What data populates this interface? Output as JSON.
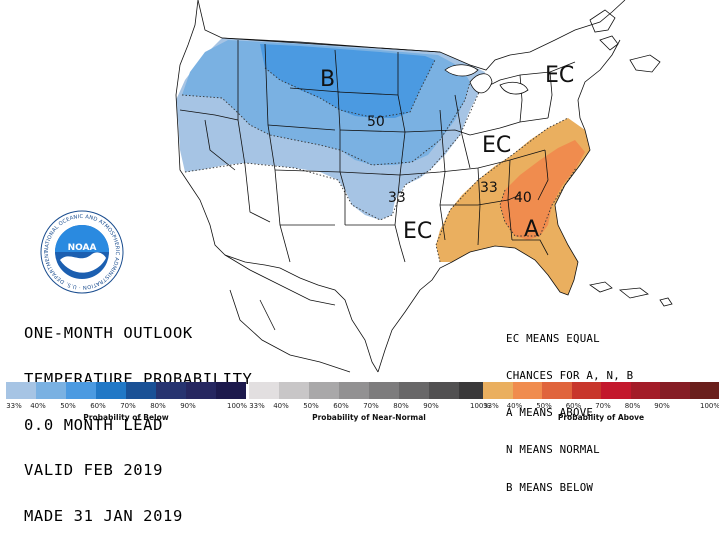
{
  "title_lines": [
    "ONE-MONTH OUTLOOK",
    "TEMPERATURE PROBABILITY",
    "0.0 MONTH LEAD",
    "VALID FEB 2019",
    "MADE 31 JAN 2019"
  ],
  "legend_lines": [
    "EC MEANS EQUAL",
    "CHANCES FOR A, N, B",
    "A MEANS ABOVE",
    "N MEANS NORMAL",
    "B MEANS BELOW"
  ],
  "map_labels": {
    "below": "B",
    "above": "A",
    "ec_northeast": "EC",
    "ec_central": "EC",
    "ec_south": "EC",
    "contour_50": "50",
    "contour_33_west": "33",
    "contour_33_east": "33",
    "contour_40": "40"
  },
  "noaa": {
    "logo_text": "NOAA",
    "ring_text": "NATIONAL OCEANIC AND ATMOSPHERIC ADMINISTRATION · U.S. DEPARTMENT OF COMMERCE"
  },
  "scales": [
    {
      "name": "Probability of Below",
      "colors": [
        "#a6c4e4",
        "#7ab1e2",
        "#4b9ae1",
        "#2178c6",
        "#1a5196",
        "#273470",
        "#262760",
        "#1d1a4d"
      ],
      "ticks": [
        "33%",
        "40%",
        "50%",
        "60%",
        "70%",
        "80%",
        "90%",
        "100%"
      ]
    },
    {
      "name": "Probability of Near-Normal",
      "colors": [
        "#e2dfe0",
        "#c8c6c7",
        "#a9a8a9",
        "#929192",
        "#7d7c7d",
        "#686768",
        "#515051",
        "#3a393a"
      ],
      "ticks": [
        "33%",
        "40%",
        "50%",
        "60%",
        "70%",
        "80%",
        "90%",
        "100%"
      ]
    },
    {
      "name": "Probability of Above",
      "colors": [
        "#eaaf5f",
        "#f08c4e",
        "#e0643c",
        "#c8362b",
        "#c3182c",
        "#a31c28",
        "#861d25",
        "#6a1f1c"
      ],
      "ticks": [
        "33%",
        "40%",
        "50%",
        "60%",
        "70%",
        "80%",
        "90%",
        "100%"
      ]
    }
  ]
}
